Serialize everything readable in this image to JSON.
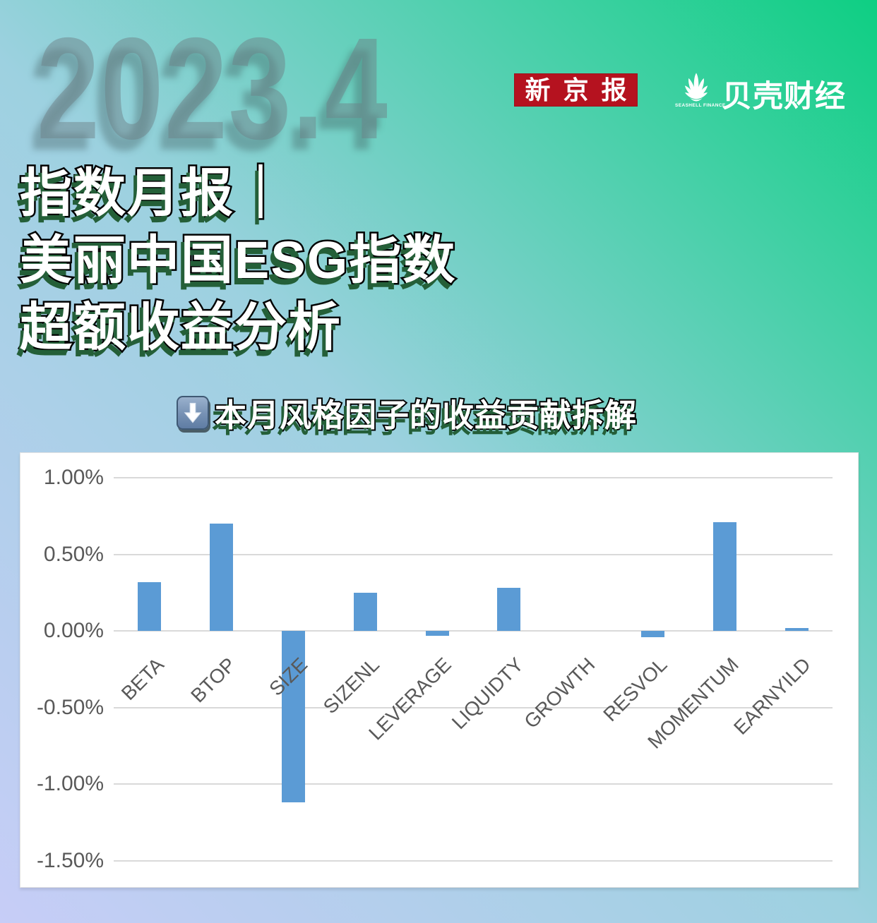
{
  "header": {
    "watermark": "2023.4",
    "logos": {
      "xinjingbao_text": "新京报",
      "xinjingbao_bg_color": "#b5121f",
      "beike_text": "贝壳财经",
      "beike_subtext": "SEASHELL FINANCE",
      "beike_icon": "seashell-icon"
    }
  },
  "title": {
    "line1": "指数月报｜",
    "line2": "美丽中国ESG指数",
    "line3": "超额收益分析"
  },
  "subtitle": {
    "icon": "down-arrow-icon",
    "text": "本月风格因子的收益贡献拆解"
  },
  "chart_data": {
    "type": "bar",
    "title": "本月风格因子的收益贡献拆解",
    "xlabel": "",
    "ylabel": "",
    "categories": [
      "BETA",
      "BTOP",
      "SIZE",
      "SIZENL",
      "LEVERAGE",
      "LIQUIDTY",
      "GROWTH",
      "RESVOL",
      "MOMENTUM",
      "EARNYILD"
    ],
    "values": [
      0.32,
      0.7,
      -1.12,
      0.25,
      -0.03,
      0.28,
      0.0,
      -0.04,
      0.71,
      0.02
    ],
    "value_unit": "%",
    "y_ticks": [
      "1.00%",
      "0.50%",
      "0.00%",
      "-0.50%",
      "-1.00%",
      "-1.50%"
    ],
    "y_tick_values": [
      1.0,
      0.5,
      0.0,
      -0.5,
      -1.0,
      -1.5
    ],
    "ylim": [
      -1.66,
      1.16
    ],
    "grid": true,
    "legend": false,
    "bar_color": "#5b9bd5",
    "grid_color": "#d9d9d9",
    "tick_color": "#595959"
  },
  "colors": {
    "background_gradient": [
      "#c7cdf7",
      "#9dd1e0",
      "#0ecf83"
    ],
    "title_fill": "#ffffff",
    "title_outline": "#000000",
    "title_shadow": "#245f38",
    "watermark": "#6c8085"
  }
}
